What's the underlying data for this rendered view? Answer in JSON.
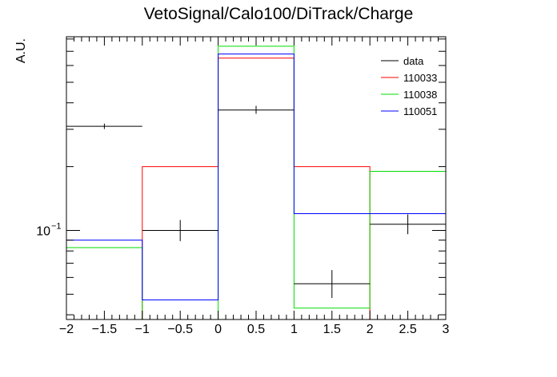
{
  "chart_data": {
    "type": "histogram",
    "title": "VetoSignal/Calo100/DiTrack/Charge",
    "xlabel": "",
    "ylabel": "A.U.",
    "xlim": [
      -2,
      3
    ],
    "ylim": [
      0.038,
      0.82
    ],
    "yscale": "log",
    "grid": false,
    "legend_position": "top-right",
    "bin_edges": [
      -2,
      -1,
      0,
      1,
      2,
      3
    ],
    "x_ticks": [
      "−2",
      "−1.5",
      "−1",
      "−0.5",
      "0",
      "0.5",
      "1",
      "1.5",
      "2",
      "2.5",
      "3"
    ],
    "x_tick_values": [
      -2,
      -1.5,
      -1,
      -0.5,
      0,
      0.5,
      1,
      1.5,
      2,
      2.5,
      3
    ],
    "y_major_tick_label": "10",
    "y_major_tick_exp": "−1",
    "series": [
      {
        "name": "data",
        "kind": "points",
        "color": "#000000",
        "values": [
          0.31,
          0.1,
          0.37,
          0.056,
          0.107
        ],
        "err_low": [
          0.009,
          0.011,
          0.015,
          0.008,
          0.011
        ],
        "err_high": [
          0.009,
          0.012,
          0.017,
          0.009,
          0.012
        ]
      },
      {
        "name": "110033",
        "kind": "step",
        "color": "#ff0000",
        "values": [
          0.0,
          0.2,
          0.65,
          0.2,
          0.0
        ]
      },
      {
        "name": "110038",
        "kind": "step",
        "color": "#00dd00",
        "values": [
          0.083,
          0.0,
          0.74,
          0.043,
          0.19
        ]
      },
      {
        "name": "110051",
        "kind": "step",
        "color": "#0000ff",
        "values": [
          0.09,
          0.047,
          0.68,
          0.12,
          0.12
        ]
      }
    ]
  }
}
